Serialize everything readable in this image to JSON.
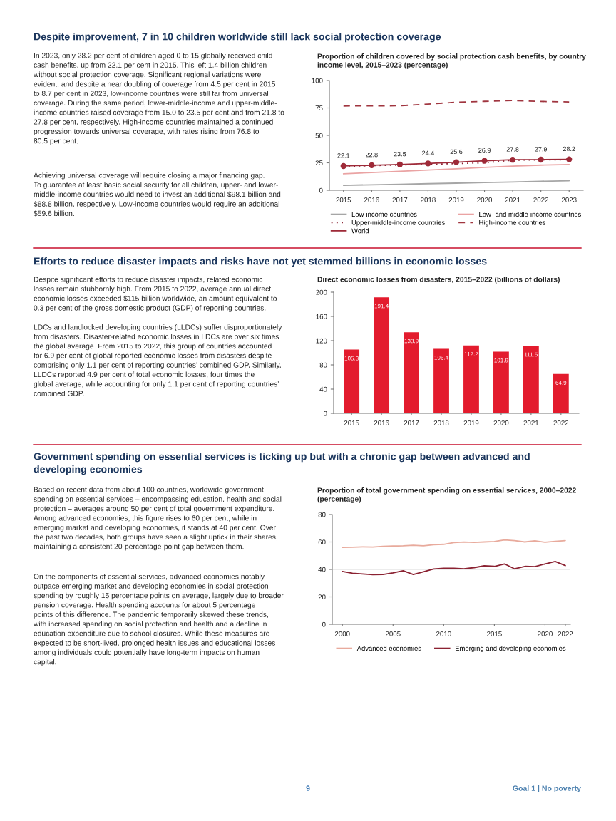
{
  "chart_data": [
    {
      "type": "other",
      "title": "Despite improvement, 7 in 10 children worldwide still lack social protection coverage",
      "annotations": [
        "In 2023, only 28.2 per cent of children aged 0 to 15 globally received child\ncash benefits, up from 22.1 per cent in 2015. This left 1.4 billion children\nwithout social protection coverage. Significant regional variations were\nevident, and despite a near doubling of coverage from 4.5 per cent in 2015\nto 8.7 per cent in 2023, low-income countries were still far from universal\ncoverage. During the same period, lower-middle-income and upper-middle-\nincome countries raised coverage from 15.0 to 23.5 per cent and from 21.8 to\n27.8 per cent, respectively. High-income countries maintained a continued\nprogression towards universal coverage, with rates rising from 76.8 to\n80.5 per cent.",
        "Achieving universal coverage will require closing a major financing gap.\nTo guarantee at least basic social security for all children, upper- and lower-\nmiddle-income countries would need to invest an additional $98.1 billion and\n$88.8 billion, respectively. Low-income countries would require an additional\n$59.6 billion."
      ]
    },
    {
      "type": "line",
      "title": "Proportion of children covered by social protection cash benefits, by country\nincome level, 2015–2023 (percentage)",
      "x": [
        2015,
        2016,
        2017,
        2018,
        2019,
        2020,
        2021,
        2022,
        2023
      ],
      "series": [
        {
          "name": "Low-income countries",
          "color": "#a6a6a6",
          "line_style": "solid",
          "values": [
            4.5,
            5.0,
            5.5,
            6.0,
            6.5,
            7.0,
            7.6,
            8.2,
            8.7
          ]
        },
        {
          "name": "Upper-middle-income countries",
          "color": "#8b2232",
          "line_style": "dotted",
          "values": [
            21.8,
            22.4,
            23.0,
            23.6,
            24.3,
            25.0,
            27.4,
            27.6,
            27.8
          ]
        },
        {
          "name": "World",
          "color": "#9e2a38",
          "line_style": "solid",
          "marker": "circle",
          "values": [
            22.1,
            22.8,
            23.5,
            24.4,
            25.6,
            26.9,
            27.8,
            27.9,
            28.2
          ],
          "value_labels": [
            "22.1",
            "22.8",
            "23.5",
            "24.4",
            "25.6",
            "26.9",
            "27.8",
            "27.9",
            "28.2"
          ]
        },
        {
          "name": "Low- and middle-income countries",
          "color": "#eaa3a3",
          "line_style": "solid",
          "values": [
            15.0,
            16.2,
            17.3,
            18.4,
            19.6,
            20.8,
            22.0,
            22.9,
            23.5
          ]
        },
        {
          "name": "High-income countries",
          "color": "#a0353f",
          "line_style": "dashed",
          "values": [
            76.8,
            76.9,
            77.0,
            78.5,
            80.2,
            81.0,
            81.8,
            80.9,
            80.5
          ]
        }
      ],
      "xlim": [
        2014.5,
        2023.5
      ],
      "xticks": [
        2015,
        2016,
        2017,
        2018,
        2019,
        2020,
        2021,
        2022,
        2023
      ],
      "ylim": [
        0,
        100
      ],
      "yticks": [
        0,
        25,
        50,
        75,
        100
      ],
      "grid": false,
      "legend": "bottom"
    },
    {
      "type": "other",
      "title": "Efforts to reduce disaster impacts and risks have not yet stemmed billions in economic losses",
      "annotations": [
        "Despite significant efforts to reduce disaster impacts, related economic\nlosses remain stubbornly high. From 2015 to 2022, average annual direct\neconomic losses exceeded $115 billion worldwide, an amount equivalent to\n0.3 per cent of the gross domestic product (GDP) of reporting countries.",
        "LDCs and landlocked developing countries (LLDCs) suffer disproportionately\nfrom disasters. Disaster-related economic losses in LDCs are over six times\nthe global average. From 2015 to 2022, this group of countries accounted\nfor 6.9 per cent of global reported economic losses from disasters despite\ncomprising only 1.1 per cent of reporting countries’ combined GDP. Similarly,\nLLDCs reported 4.9 per cent of total economic losses, four times the\nglobal average, while accounting for only 1.1 per cent of reporting countries’\ncombined GDP."
      ]
    },
    {
      "type": "bar",
      "title": "Direct economic losses from disasters, 2015–2022 (billions of dollars)",
      "categories": [
        "2015",
        "2016",
        "2017",
        "2018",
        "2019",
        "2020",
        "2021",
        "2022"
      ],
      "values": [
        105.3,
        191.4,
        133.9,
        106.4,
        112.2,
        101.9,
        111.5,
        64.9
      ],
      "color": "#e31b2d",
      "ylim": [
        0,
        200
      ],
      "yticks": [
        0,
        40,
        80,
        120,
        160,
        200
      ],
      "grid": false,
      "data_labels": true
    },
    {
      "type": "other",
      "title": "Government spending on essential services is ticking up but with a chronic gap between advanced and\ndeveloping economies",
      "annotations": [
        "Based on recent data from about 100 countries, worldwide government\nspending on essential services – encompassing education, health and social\nprotection – averages around 50 per cent of total government expenditure.\nAmong advanced economies, this figure rises to 60 per cent, while in\nemerging market and developing economies, it stands at 40 per cent. Over\nthe past two decades, both groups have seen a slight uptick in their shares,\nmaintaining a consistent 20-percentage-point gap between them.",
        "On the components of essential services, advanced economies notably\noutpace emerging market and developing economies in social protection\nspending by roughly 15 percentage points on average, largely due to broader\npension coverage. Health spending accounts for about 5 percentage\npoints of this difference. The pandemic temporarily skewed these trends,\nwith increased spending on social protection and health and a decline in\neducation expenditure due to school closures. While these measures are\nexpected to be short-lived, prolonged health issues and educational losses\namong individuals could potentially have long-term impacts on human\ncapital."
      ]
    },
    {
      "type": "line",
      "title": "Proportion of total government spending on essential services, 2000–2022\n(percentage)",
      "x": [
        2000,
        2001,
        2002,
        2003,
        2004,
        2005,
        2006,
        2007,
        2008,
        2009,
        2010,
        2011,
        2012,
        2013,
        2014,
        2015,
        2016,
        2017,
        2018,
        2019,
        2020,
        2021,
        2022
      ],
      "series": [
        {
          "name": "Advanced economies",
          "color": "#e8aa9c",
          "line_style": "solid",
          "values": [
            56.0,
            56.2,
            56.4,
            56.3,
            56.8,
            57.0,
            57.2,
            57.6,
            57.2,
            58.0,
            58.3,
            59.5,
            59.9,
            59.7,
            60.0,
            60.3,
            61.5,
            61.0,
            60.0,
            60.8,
            59.8,
            60.5,
            61.0
          ]
        },
        {
          "name": "Emerging and developing economies",
          "color": "#8b2232",
          "line_style": "solid",
          "values": [
            38.5,
            37.2,
            36.7,
            36.2,
            36.3,
            37.5,
            39.0,
            36.3,
            38.2,
            40.3,
            40.8,
            40.8,
            40.5,
            41.3,
            42.6,
            42.2,
            44.0,
            40.4,
            42.2,
            42.0,
            44.0,
            45.8,
            42.8
          ]
        }
      ],
      "xlim": [
        1999,
        2022.5
      ],
      "xticks": [
        2000,
        2005,
        2010,
        2015,
        2020,
        2022
      ],
      "ylim": [
        0,
        80
      ],
      "yticks": [
        0,
        20,
        40,
        60,
        80
      ],
      "grid": "y",
      "legend": "bottom"
    },
    {
      "type": "other",
      "annotations": [
        "9",
        "Goal 1 | No poverty"
      ]
    }
  ]
}
